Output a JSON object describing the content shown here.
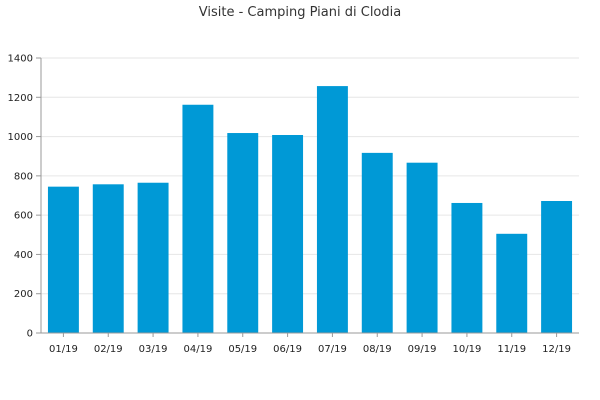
{
  "chart_data": {
    "type": "bar",
    "title": "Visite - Camping Piani di Clodia",
    "categories": [
      "01/19",
      "02/19",
      "03/19",
      "04/19",
      "05/19",
      "06/19",
      "07/19",
      "08/19",
      "09/19",
      "10/19",
      "11/19",
      "12/19"
    ],
    "values": [
      745,
      757,
      765,
      1162,
      1018,
      1008,
      1257,
      917,
      867,
      662,
      505,
      672
    ],
    "ylim": [
      0,
      1400
    ],
    "yticks": [
      0,
      200,
      400,
      600,
      800,
      1000,
      1200,
      1400
    ],
    "ytick_labels": [
      "0",
      "200",
      "400",
      "600",
      "800",
      "1000",
      "1200",
      "1400"
    ],
    "grid": true,
    "colors": {
      "bar": "#0099d6",
      "grid": "#e6e6e6",
      "axis": "#999999"
    }
  }
}
